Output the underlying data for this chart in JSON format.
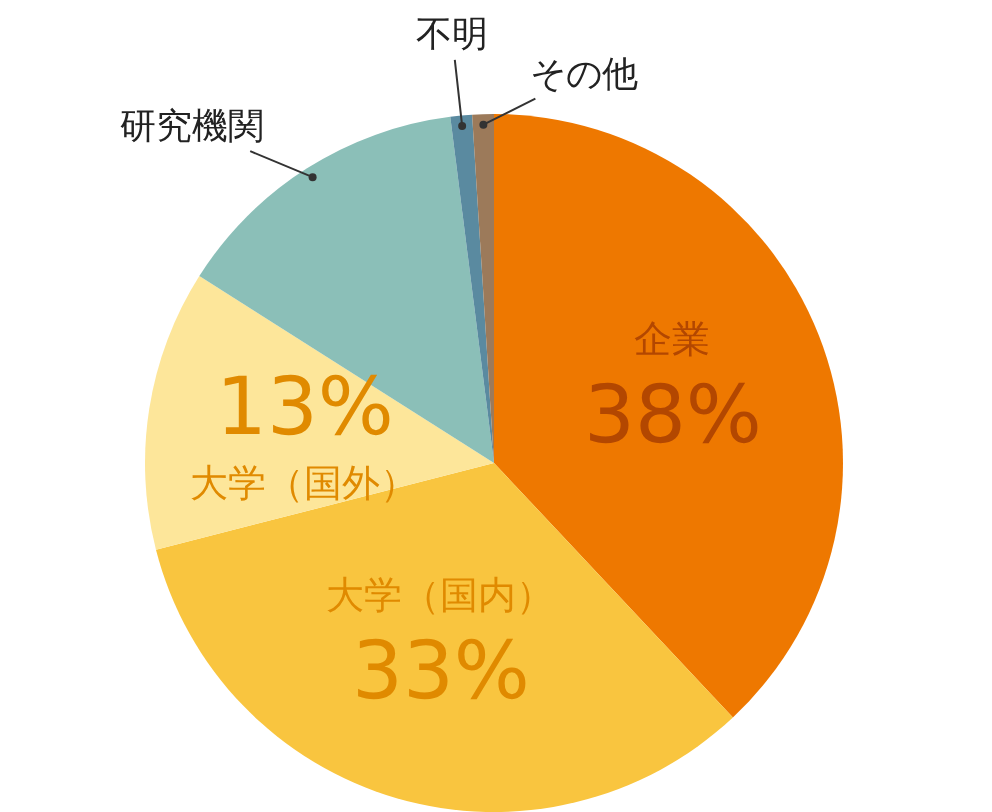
{
  "chart_data": {
    "type": "pie",
    "categories": [
      "企業",
      "大学（国内）",
      "大学（国外）",
      "研究機関",
      "不明",
      "その他"
    ],
    "values": [
      38,
      33,
      13,
      14,
      1,
      1
    ],
    "value_labels": [
      "38%",
      "33%",
      "13%",
      null,
      null,
      null
    ],
    "colors": [
      "#ee7800",
      "#f9c53f",
      "#fde69a",
      "#8bbfb8",
      "#5a8aa0",
      "#9c7a5a"
    ]
  }
}
